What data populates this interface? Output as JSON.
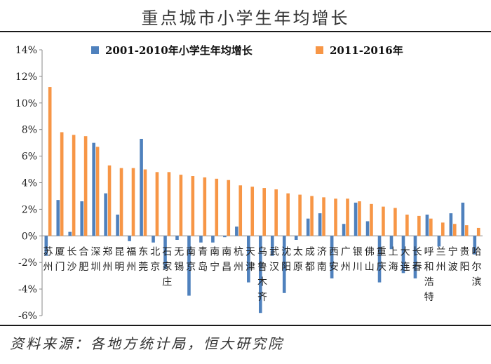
{
  "header": {
    "title": "重点城市小学生年均增长"
  },
  "footer": {
    "source": "资料来源：各地方统计局，恒大研究院"
  },
  "chart_data": {
    "type": "bar",
    "title": "重点城市小学生年均增长",
    "ylim": [
      -6,
      14
    ],
    "yticks": [
      -6,
      -4,
      -2,
      0,
      2,
      4,
      6,
      8,
      10,
      12,
      14
    ],
    "ytick_labels": [
      "-6%",
      "-4%",
      "-2%",
      "0%",
      "2%",
      "4%",
      "6%",
      "8%",
      "10%",
      "12%",
      "14%"
    ],
    "legend_position": "top",
    "grid": false,
    "categories": [
      "苏州",
      "厦门",
      "长沙",
      "合肥",
      "深圳",
      "郑州",
      "昆明",
      "福州",
      "东莞",
      "北京",
      "石家庄",
      "无锡",
      "南京",
      "青岛",
      "南宁",
      "南昌",
      "杭州",
      "天津",
      "乌鲁木齐",
      "武汉",
      "沈阳",
      "太原",
      "成都",
      "济南",
      "西安",
      "广州",
      "银川",
      "佛山",
      "重庆",
      "上海",
      "大连",
      "长春",
      "呼和浩特",
      "兰州",
      "宁波",
      "贵阳",
      "哈尔滨"
    ],
    "series": [
      {
        "name": "2001-2010年小学生年均增长",
        "color": "#4f81bd",
        "values": [
          -1.5,
          2.7,
          0.3,
          2.6,
          7.0,
          3.2,
          1.6,
          -0.4,
          7.3,
          -0.5,
          -2.5,
          -0.3,
          -4.5,
          -0.5,
          -0.5,
          -0.1,
          0.7,
          -3.5,
          -5.8,
          -1.5,
          -4.3,
          -0.3,
          1.3,
          1.7,
          -3.2,
          0.9,
          2.5,
          1.1,
          -3.5,
          -1.0,
          -2.8,
          -3.2,
          1.6,
          -0.8,
          1.7,
          2.5,
          -1.4
        ]
      },
      {
        "name": "2011-2016年",
        "color": "#f79646",
        "values": [
          11.2,
          7.8,
          7.6,
          7.5,
          6.7,
          5.3,
          5.1,
          5.1,
          5.0,
          4.8,
          4.8,
          4.6,
          4.5,
          4.4,
          4.3,
          4.2,
          3.8,
          3.7,
          3.6,
          3.5,
          3.2,
          3.1,
          3.0,
          2.9,
          2.8,
          2.8,
          2.6,
          2.4,
          2.2,
          2.1,
          1.6,
          1.5,
          1.3,
          1.0,
          0.9,
          0.8,
          0.6
        ]
      }
    ]
  }
}
